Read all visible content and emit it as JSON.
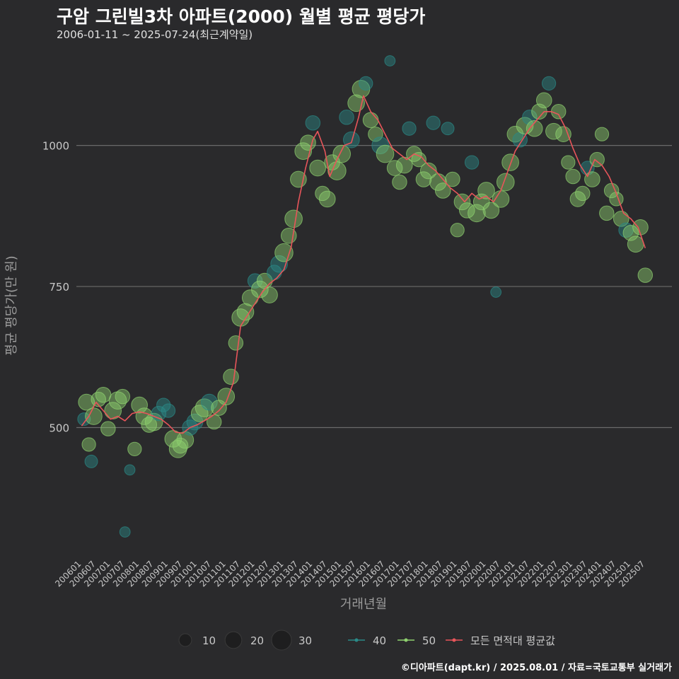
{
  "header": {
    "title": "구암 그린빌3차 아파트(2000) 월별 평균 평당가",
    "subtitle": "2006-01-11 ~ 2025-07-24(최근계약일)"
  },
  "footer": {
    "credit": "©디아파트(dapt.kr) / 2025.08.01 / 자료=국토교통부 실거래가"
  },
  "colors": {
    "bg": "#2a2a2c",
    "grid": "#6a6a6a",
    "s40": "#2a8a88",
    "s50": "#8fd16f",
    "avg": "#e8555a",
    "axis_text": "#c8c8c8"
  },
  "chart_data": {
    "type": "scatter",
    "title": "구암 그린빌3차 아파트(2000) 월별 평균 평당가",
    "xlabel": "거래년월",
    "ylabel": "평균 평당가(만 원)",
    "ylim": [
      270,
      1160
    ],
    "yticks": [
      500,
      750,
      1000
    ],
    "xlim": [
      "2006-01",
      "2025-07"
    ],
    "xticks": [
      "200601",
      "200607",
      "200701",
      "200707",
      "200801",
      "200807",
      "200901",
      "200907",
      "201001",
      "201007",
      "201101",
      "201107",
      "201201",
      "201207",
      "201301",
      "201307",
      "201401",
      "201407",
      "201501",
      "201507",
      "201601",
      "201607",
      "201701",
      "201707",
      "201801",
      "201807",
      "201901",
      "201907",
      "202001",
      "202007",
      "202101",
      "202107",
      "202201",
      "202207",
      "202301",
      "202307",
      "202401",
      "202407",
      "202501",
      "202507"
    ],
    "size_legend": {
      "values": [
        10,
        20,
        30
      ]
    },
    "series_legend": [
      {
        "key": "40",
        "label": "40"
      },
      {
        "key": "50",
        "label": "50"
      },
      {
        "key": "avg",
        "label": "모든 면적대 평균값"
      }
    ],
    "average_line": [
      [
        "2006-01",
        503
      ],
      [
        "2006-04",
        520
      ],
      [
        "2006-07",
        545
      ],
      [
        "2006-10",
        530
      ],
      [
        "2007-01",
        515
      ],
      [
        "2007-04",
        520
      ],
      [
        "2007-07",
        512
      ],
      [
        "2007-10",
        525
      ],
      [
        "2008-01",
        528
      ],
      [
        "2008-04",
        525
      ],
      [
        "2008-07",
        520
      ],
      [
        "2008-10",
        515
      ],
      [
        "2009-01",
        505
      ],
      [
        "2009-04",
        492
      ],
      [
        "2009-07",
        490
      ],
      [
        "2009-10",
        500
      ],
      [
        "2010-01",
        505
      ],
      [
        "2010-04",
        512
      ],
      [
        "2010-07",
        520
      ],
      [
        "2010-10",
        530
      ],
      [
        "2011-01",
        545
      ],
      [
        "2011-04",
        580
      ],
      [
        "2011-07",
        680
      ],
      [
        "2011-10",
        700
      ],
      [
        "2012-01",
        720
      ],
      [
        "2012-04",
        740
      ],
      [
        "2012-07",
        755
      ],
      [
        "2012-10",
        765
      ],
      [
        "2013-01",
        780
      ],
      [
        "2013-04",
        820
      ],
      [
        "2013-07",
        900
      ],
      [
        "2013-10",
        960
      ],
      [
        "2014-01",
        1010
      ],
      [
        "2014-03",
        1025
      ],
      [
        "2014-06",
        990
      ],
      [
        "2014-08",
        945
      ],
      [
        "2014-11",
        975
      ],
      [
        "2015-02",
        1000
      ],
      [
        "2015-05",
        1005
      ],
      [
        "2015-08",
        1050
      ],
      [
        "2015-10",
        1088
      ],
      [
        "2016-01",
        1060
      ],
      [
        "2016-04",
        1045
      ],
      [
        "2016-07",
        1020
      ],
      [
        "2016-10",
        995
      ],
      [
        "2017-01",
        985
      ],
      [
        "2017-04",
        975
      ],
      [
        "2017-07",
        985
      ],
      [
        "2017-10",
        980
      ],
      [
        "2018-01",
        965
      ],
      [
        "2018-04",
        955
      ],
      [
        "2018-07",
        940
      ],
      [
        "2018-10",
        925
      ],
      [
        "2019-01",
        915
      ],
      [
        "2019-04",
        900
      ],
      [
        "2019-07",
        915
      ],
      [
        "2019-10",
        905
      ],
      [
        "2020-01",
        910
      ],
      [
        "2020-04",
        900
      ],
      [
        "2020-07",
        920
      ],
      [
        "2020-10",
        955
      ],
      [
        "2021-01",
        990
      ],
      [
        "2021-04",
        1010
      ],
      [
        "2021-07",
        1030
      ],
      [
        "2021-10",
        1045
      ],
      [
        "2022-01",
        1060
      ],
      [
        "2022-04",
        1060
      ],
      [
        "2022-07",
        1055
      ],
      [
        "2022-10",
        1030
      ],
      [
        "2023-01",
        995
      ],
      [
        "2023-04",
        965
      ],
      [
        "2023-07",
        945
      ],
      [
        "2023-10",
        975
      ],
      [
        "2024-01",
        965
      ],
      [
        "2024-04",
        945
      ],
      [
        "2024-07",
        915
      ],
      [
        "2024-10",
        880
      ],
      [
        "2025-01",
        870
      ],
      [
        "2025-04",
        855
      ],
      [
        "2025-07",
        818
      ]
    ],
    "points": [
      [
        "2006-02",
        515,
        10,
        "40"
      ],
      [
        "2006-03",
        545,
        18,
        "50"
      ],
      [
        "2006-04",
        470,
        12,
        "50"
      ],
      [
        "2006-05",
        440,
        10,
        "40"
      ],
      [
        "2006-06",
        520,
        20,
        "50"
      ],
      [
        "2006-08",
        550,
        14,
        "50"
      ],
      [
        "2006-10",
        558,
        16,
        "50"
      ],
      [
        "2006-12",
        498,
        14,
        "50"
      ],
      [
        "2007-02",
        530,
        20,
        "50"
      ],
      [
        "2007-04",
        548,
        22,
        "50"
      ],
      [
        "2007-06",
        555,
        14,
        "50"
      ],
      [
        "2007-07",
        315,
        6,
        "40"
      ],
      [
        "2007-09",
        425,
        6,
        "40"
      ],
      [
        "2007-11",
        462,
        12,
        "50"
      ],
      [
        "2008-01",
        540,
        18,
        "50"
      ],
      [
        "2008-03",
        520,
        20,
        "50"
      ],
      [
        "2008-05",
        505,
        16,
        "50"
      ],
      [
        "2008-07",
        510,
        22,
        "50"
      ],
      [
        "2008-09",
        525,
        14,
        "40"
      ],
      [
        "2008-11",
        540,
        12,
        "40"
      ],
      [
        "2009-01",
        530,
        12,
        "40"
      ],
      [
        "2009-03",
        480,
        20,
        "50"
      ],
      [
        "2009-05",
        462,
        22,
        "50"
      ],
      [
        "2009-06",
        468,
        16,
        "50"
      ],
      [
        "2009-08",
        478,
        20,
        "50"
      ],
      [
        "2009-10",
        500,
        16,
        "40"
      ],
      [
        "2009-12",
        510,
        18,
        "40"
      ],
      [
        "2010-02",
        525,
        20,
        "50"
      ],
      [
        "2010-04",
        535,
        24,
        "50"
      ],
      [
        "2010-06",
        545,
        18,
        "40"
      ],
      [
        "2010-08",
        510,
        14,
        "50"
      ],
      [
        "2010-10",
        535,
        16,
        "50"
      ],
      [
        "2011-01",
        555,
        20,
        "50"
      ],
      [
        "2011-03",
        590,
        16,
        "50"
      ],
      [
        "2011-05",
        650,
        14,
        "50"
      ],
      [
        "2011-07",
        695,
        22,
        "50"
      ],
      [
        "2011-09",
        705,
        20,
        "50"
      ],
      [
        "2011-11",
        730,
        18,
        "50"
      ],
      [
        "2012-01",
        760,
        14,
        "40"
      ],
      [
        "2012-03",
        745,
        20,
        "50"
      ],
      [
        "2012-05",
        760,
        16,
        "50"
      ],
      [
        "2012-07",
        735,
        18,
        "50"
      ],
      [
        "2012-09",
        775,
        14,
        "40"
      ],
      [
        "2012-11",
        790,
        20,
        "40"
      ],
      [
        "2013-01",
        810,
        24,
        "50"
      ],
      [
        "2013-03",
        840,
        16,
        "50"
      ],
      [
        "2013-05",
        870,
        22,
        "50"
      ],
      [
        "2013-07",
        940,
        18,
        "50"
      ],
      [
        "2013-09",
        990,
        20,
        "50"
      ],
      [
        "2013-11",
        1005,
        16,
        "50"
      ],
      [
        "2014-01",
        1040,
        14,
        "40"
      ],
      [
        "2014-03",
        960,
        18,
        "50"
      ],
      [
        "2014-05",
        915,
        14,
        "50"
      ],
      [
        "2014-07",
        905,
        18,
        "50"
      ],
      [
        "2014-09",
        970,
        16,
        "50"
      ],
      [
        "2014-11",
        955,
        24,
        "50"
      ],
      [
        "2015-01",
        985,
        22,
        "50"
      ],
      [
        "2015-03",
        1050,
        14,
        "40"
      ],
      [
        "2015-05",
        1010,
        18,
        "40"
      ],
      [
        "2015-07",
        1075,
        20,
        "50"
      ],
      [
        "2015-09",
        1100,
        22,
        "50"
      ],
      [
        "2015-11",
        1110,
        12,
        "40"
      ],
      [
        "2016-01",
        1045,
        16,
        "50"
      ],
      [
        "2016-03",
        1020,
        14,
        "50"
      ],
      [
        "2016-05",
        1000,
        20,
        "40"
      ],
      [
        "2016-07",
        985,
        22,
        "50"
      ],
      [
        "2016-09",
        1150,
        6,
        "40"
      ],
      [
        "2016-11",
        960,
        16,
        "50"
      ],
      [
        "2017-01",
        935,
        14,
        "50"
      ],
      [
        "2017-03",
        965,
        18,
        "50"
      ],
      [
        "2017-05",
        1030,
        12,
        "40"
      ],
      [
        "2017-07",
        985,
        16,
        "50"
      ],
      [
        "2017-09",
        975,
        14,
        "50"
      ],
      [
        "2017-11",
        940,
        16,
        "50"
      ],
      [
        "2018-01",
        955,
        18,
        "50"
      ],
      [
        "2018-03",
        1040,
        12,
        "40"
      ],
      [
        "2018-05",
        935,
        20,
        "50"
      ],
      [
        "2018-07",
        920,
        16,
        "50"
      ],
      [
        "2018-09",
        1030,
        10,
        "40"
      ],
      [
        "2018-11",
        940,
        14,
        "50"
      ],
      [
        "2019-01",
        850,
        12,
        "50"
      ],
      [
        "2019-03",
        900,
        18,
        "50"
      ],
      [
        "2019-05",
        885,
        16,
        "50"
      ],
      [
        "2019-07",
        970,
        12,
        "40"
      ],
      [
        "2019-09",
        880,
        22,
        "50"
      ],
      [
        "2019-11",
        900,
        18,
        "50"
      ],
      [
        "2020-01",
        920,
        20,
        "50"
      ],
      [
        "2020-03",
        885,
        18,
        "50"
      ],
      [
        "2020-05",
        740,
        6,
        "40"
      ],
      [
        "2020-07",
        905,
        20,
        "50"
      ],
      [
        "2020-09",
        935,
        22,
        "50"
      ],
      [
        "2020-11",
        970,
        20,
        "50"
      ],
      [
        "2021-01",
        1020,
        18,
        "50"
      ],
      [
        "2021-03",
        1010,
        14,
        "40"
      ],
      [
        "2021-05",
        1035,
        20,
        "50"
      ],
      [
        "2021-07",
        1050,
        14,
        "40"
      ],
      [
        "2021-09",
        1030,
        18,
        "50"
      ],
      [
        "2021-11",
        1060,
        16,
        "50"
      ],
      [
        "2022-01",
        1080,
        16,
        "50"
      ],
      [
        "2022-03",
        1110,
        12,
        "40"
      ],
      [
        "2022-05",
        1025,
        18,
        "50"
      ],
      [
        "2022-07",
        1060,
        14,
        "50"
      ],
      [
        "2022-09",
        1020,
        16,
        "50"
      ],
      [
        "2022-11",
        970,
        12,
        "50"
      ],
      [
        "2023-01",
        945,
        14,
        "50"
      ],
      [
        "2023-03",
        905,
        16,
        "50"
      ],
      [
        "2023-05",
        915,
        14,
        "50"
      ],
      [
        "2023-07",
        960,
        12,
        "40"
      ],
      [
        "2023-09",
        940,
        16,
        "50"
      ],
      [
        "2023-11",
        975,
        14,
        "50"
      ],
      [
        "2024-01",
        1020,
        12,
        "50"
      ],
      [
        "2024-03",
        880,
        14,
        "50"
      ],
      [
        "2024-05",
        920,
        14,
        "50"
      ],
      [
        "2024-07",
        905,
        12,
        "50"
      ],
      [
        "2024-09",
        870,
        16,
        "50"
      ],
      [
        "2024-11",
        850,
        14,
        "40"
      ],
      [
        "2025-01",
        845,
        16,
        "50"
      ],
      [
        "2025-03",
        825,
        18,
        "50"
      ],
      [
        "2025-05",
        855,
        16,
        "50"
      ],
      [
        "2025-07",
        770,
        14,
        "50"
      ]
    ]
  }
}
